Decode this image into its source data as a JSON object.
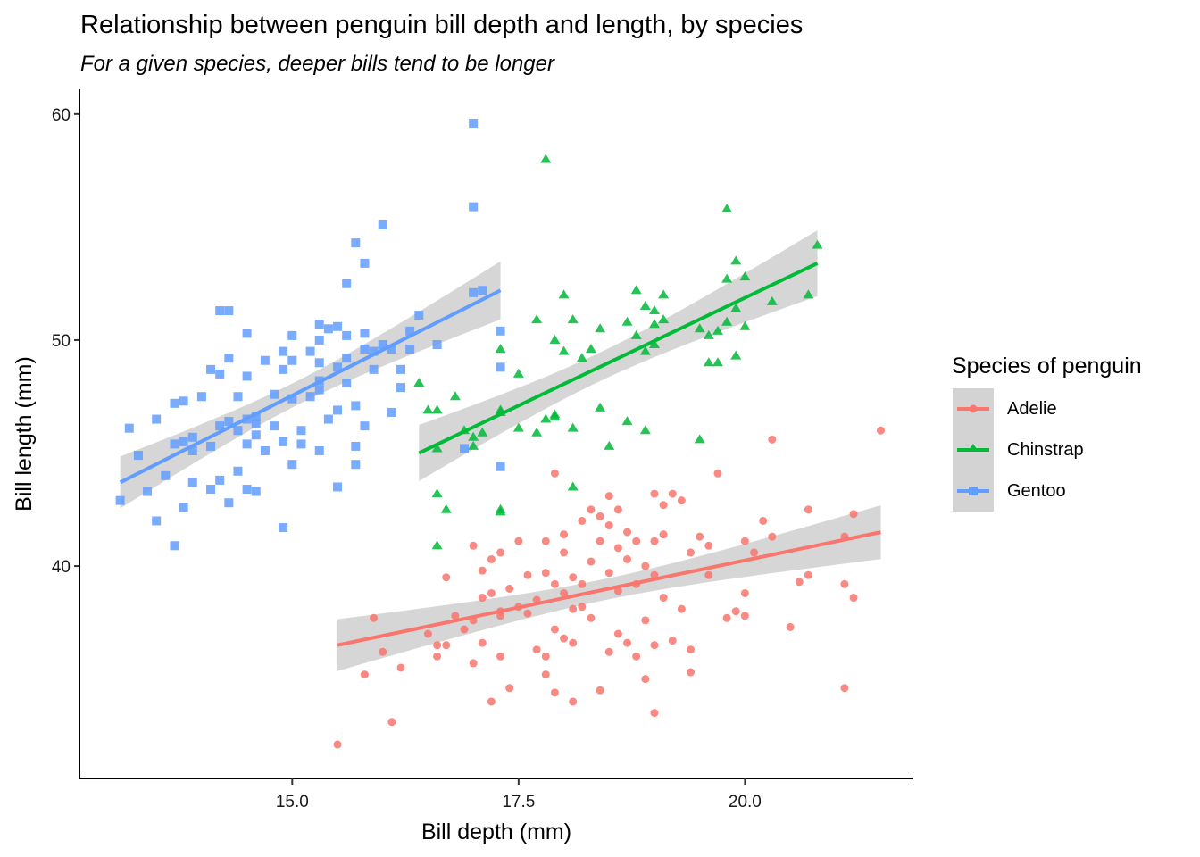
{
  "chart_data": {
    "type": "scatter",
    "title": "Relationship between penguin bill depth and length, by species",
    "subtitle": "For a given species, deeper bills tend to be longer",
    "xlabel": "Bill depth (mm)",
    "ylabel": "Bill length (mm)",
    "xlim": [
      12.65,
      21.85
    ],
    "ylim": [
      30.6,
      61.1
    ],
    "x_ticks": [
      15.0,
      17.5,
      20.0
    ],
    "x_tick_labels": [
      "15.0",
      "17.5",
      "20.0"
    ],
    "y_ticks": [
      40,
      50,
      60
    ],
    "y_tick_labels": [
      "40",
      "50",
      "60"
    ],
    "grid": false,
    "legend": {
      "title": "Species of penguin",
      "position": "right",
      "entries": [
        "Adelie",
        "Chinstrap",
        "Gentoo"
      ]
    },
    "series": [
      {
        "name": "Adelie",
        "color": "#f8766d",
        "marker": "circle",
        "trend": {
          "method": "lm",
          "x": [
            15.5,
            21.5
          ],
          "y": [
            36.5,
            41.5
          ],
          "se_band": true
        },
        "points": [
          [
            15.5,
            32.1
          ],
          [
            16.1,
            33.1
          ],
          [
            16.0,
            36.2
          ],
          [
            15.9,
            37.7
          ],
          [
            16.2,
            35.5
          ],
          [
            15.8,
            35.2
          ],
          [
            16.5,
            37.0
          ],
          [
            16.6,
            36.0
          ],
          [
            16.7,
            39.5
          ],
          [
            16.7,
            36.5
          ],
          [
            16.8,
            37.8
          ],
          [
            16.9,
            37.2
          ],
          [
            17.0,
            40.9
          ],
          [
            17.0,
            35.7
          ],
          [
            17.0,
            37.6
          ],
          [
            17.1,
            39.8
          ],
          [
            17.1,
            38.6
          ],
          [
            17.1,
            36.6
          ],
          [
            17.2,
            40.3
          ],
          [
            17.2,
            38.8
          ],
          [
            17.2,
            34.0
          ],
          [
            17.3,
            40.6
          ],
          [
            17.3,
            37.8
          ],
          [
            17.3,
            36.0
          ],
          [
            17.4,
            39.0
          ],
          [
            17.4,
            34.6
          ],
          [
            17.5,
            41.1
          ],
          [
            17.5,
            38.2
          ],
          [
            17.6,
            37.9
          ],
          [
            17.6,
            39.6
          ],
          [
            17.7,
            36.3
          ],
          [
            17.8,
            39.7
          ],
          [
            17.8,
            41.1
          ],
          [
            17.8,
            36.0
          ],
          [
            17.8,
            35.2
          ],
          [
            17.9,
            44.1
          ],
          [
            17.9,
            37.2
          ],
          [
            17.9,
            34.4
          ],
          [
            17.9,
            39.2
          ],
          [
            18.0,
            40.6
          ],
          [
            18.0,
            38.8
          ],
          [
            18.0,
            36.8
          ],
          [
            18.0,
            41.4
          ],
          [
            18.1,
            39.5
          ],
          [
            18.1,
            36.6
          ],
          [
            18.1,
            34.0
          ],
          [
            18.1,
            38.1
          ],
          [
            18.2,
            42.0
          ],
          [
            18.2,
            39.2
          ],
          [
            18.3,
            42.5
          ],
          [
            18.3,
            37.7
          ],
          [
            18.3,
            40.2
          ],
          [
            18.4,
            41.1
          ],
          [
            18.4,
            34.5
          ],
          [
            18.4,
            42.2
          ],
          [
            18.5,
            43.1
          ],
          [
            18.5,
            39.7
          ],
          [
            18.5,
            36.2
          ],
          [
            18.5,
            41.8
          ],
          [
            18.6,
            42.5
          ],
          [
            18.6,
            40.8
          ],
          [
            18.6,
            38.9
          ],
          [
            18.6,
            37.0
          ],
          [
            18.7,
            41.5
          ],
          [
            18.7,
            36.6
          ],
          [
            18.7,
            40.3
          ],
          [
            18.8,
            39.2
          ],
          [
            18.8,
            36.0
          ],
          [
            18.8,
            41.1
          ],
          [
            18.9,
            40.0
          ],
          [
            18.9,
            37.6
          ],
          [
            18.9,
            35.0
          ],
          [
            19.0,
            43.2
          ],
          [
            19.0,
            39.6
          ],
          [
            19.0,
            36.5
          ],
          [
            19.0,
            33.5
          ],
          [
            19.0,
            41.1
          ],
          [
            19.1,
            42.7
          ],
          [
            19.1,
            38.6
          ],
          [
            19.1,
            41.4
          ],
          [
            19.2,
            43.2
          ],
          [
            19.2,
            36.7
          ],
          [
            19.3,
            42.9
          ],
          [
            19.3,
            38.1
          ],
          [
            19.4,
            35.3
          ],
          [
            19.4,
            36.3
          ],
          [
            19.4,
            40.6
          ],
          [
            19.5,
            41.3
          ],
          [
            19.6,
            39.6
          ],
          [
            19.7,
            44.1
          ],
          [
            19.9,
            38.0
          ],
          [
            19.8,
            37.7
          ],
          [
            20.0,
            38.8
          ],
          [
            20.0,
            41.1
          ],
          [
            20.0,
            37.8
          ],
          [
            20.1,
            40.6
          ],
          [
            20.2,
            42.0
          ],
          [
            20.3,
            41.3
          ],
          [
            20.5,
            37.3
          ],
          [
            20.6,
            39.3
          ],
          [
            20.7,
            39.6
          ],
          [
            20.7,
            42.5
          ],
          [
            21.1,
            41.3
          ],
          [
            21.1,
            39.2
          ],
          [
            21.1,
            34.6
          ],
          [
            21.2,
            42.3
          ],
          [
            21.2,
            38.6
          ],
          [
            20.3,
            45.6
          ],
          [
            21.5,
            46.0
          ],
          [
            17.7,
            38.5
          ],
          [
            18.2,
            38.2
          ],
          [
            19.6,
            40.9
          ],
          [
            17.3,
            38.0
          ],
          [
            16.6,
            36.5
          ]
        ]
      },
      {
        "name": "Chinstrap",
        "color": "#00ba38",
        "marker": "triangle",
        "trend": {
          "method": "lm",
          "x": [
            16.4,
            20.8
          ],
          "y": [
            45.0,
            53.4
          ],
          "se_band": true
        },
        "points": [
          [
            16.4,
            48.1
          ],
          [
            16.5,
            46.9
          ],
          [
            16.6,
            46.9
          ],
          [
            16.6,
            45.2
          ],
          [
            16.6,
            43.2
          ],
          [
            16.6,
            40.9
          ],
          [
            16.7,
            42.5
          ],
          [
            16.8,
            47.5
          ],
          [
            16.9,
            46.0
          ],
          [
            17.0,
            45.7
          ],
          [
            17.1,
            45.9
          ],
          [
            17.3,
            49.6
          ],
          [
            17.3,
            46.9
          ],
          [
            17.3,
            42.4
          ],
          [
            17.3,
            42.5
          ],
          [
            17.3,
            46.8
          ],
          [
            17.5,
            48.5
          ],
          [
            17.5,
            46.1
          ],
          [
            17.7,
            50.9
          ],
          [
            17.7,
            45.9
          ],
          [
            17.8,
            58.0
          ],
          [
            17.8,
            46.5
          ],
          [
            17.9,
            50.0
          ],
          [
            17.9,
            46.6
          ],
          [
            17.9,
            46.7
          ],
          [
            18.0,
            52.0
          ],
          [
            18.0,
            49.5
          ],
          [
            18.1,
            50.9
          ],
          [
            18.1,
            46.1
          ],
          [
            18.1,
            43.5
          ],
          [
            18.2,
            49.2
          ],
          [
            18.3,
            49.6
          ],
          [
            18.4,
            50.5
          ],
          [
            18.4,
            47.0
          ],
          [
            18.5,
            45.3
          ],
          [
            18.7,
            50.8
          ],
          [
            18.7,
            46.4
          ],
          [
            18.8,
            52.2
          ],
          [
            18.8,
            50.2
          ],
          [
            18.9,
            51.5
          ],
          [
            18.9,
            49.5
          ],
          [
            18.9,
            46.0
          ],
          [
            19.0,
            51.3
          ],
          [
            19.0,
            50.7
          ],
          [
            19.0,
            49.8
          ],
          [
            19.1,
            52.0
          ],
          [
            19.1,
            50.9
          ],
          [
            19.5,
            50.5
          ],
          [
            19.5,
            45.6
          ],
          [
            19.6,
            49.0
          ],
          [
            19.7,
            50.4
          ],
          [
            19.7,
            49.0
          ],
          [
            19.8,
            55.8
          ],
          [
            19.8,
            50.8
          ],
          [
            19.8,
            52.7
          ],
          [
            19.9,
            53.5
          ],
          [
            19.9,
            51.4
          ],
          [
            19.9,
            49.3
          ],
          [
            20.0,
            52.8
          ],
          [
            20.0,
            50.6
          ],
          [
            20.3,
            51.7
          ],
          [
            20.7,
            52.0
          ],
          [
            20.8,
            54.2
          ],
          [
            17.0,
            45.3
          ],
          [
            19.6,
            50.2
          ]
        ]
      },
      {
        "name": "Gentoo",
        "color": "#619cff",
        "marker": "square",
        "trend": {
          "method": "lm",
          "x": [
            13.1,
            17.3
          ],
          "y": [
            43.7,
            52.2
          ],
          "se_band": true
        },
        "points": [
          [
            13.1,
            42.9
          ],
          [
            13.2,
            46.1
          ],
          [
            13.3,
            44.9
          ],
          [
            13.4,
            43.3
          ],
          [
            13.5,
            46.5
          ],
          [
            13.5,
            42.0
          ],
          [
            13.6,
            44.0
          ],
          [
            13.7,
            45.4
          ],
          [
            13.7,
            40.9
          ],
          [
            13.7,
            47.2
          ],
          [
            13.8,
            45.5
          ],
          [
            13.8,
            47.3
          ],
          [
            13.8,
            42.6
          ],
          [
            13.9,
            45.7
          ],
          [
            13.9,
            45.1
          ],
          [
            13.9,
            43.7
          ],
          [
            14.0,
            47.5
          ],
          [
            14.1,
            43.4
          ],
          [
            14.1,
            48.7
          ],
          [
            14.1,
            45.3
          ],
          [
            14.2,
            48.5
          ],
          [
            14.2,
            46.2
          ],
          [
            14.2,
            43.8
          ],
          [
            14.3,
            46.4
          ],
          [
            14.3,
            42.8
          ],
          [
            14.3,
            49.2
          ],
          [
            14.3,
            51.3
          ],
          [
            14.4,
            47.5
          ],
          [
            14.4,
            46.0
          ],
          [
            14.4,
            44.2
          ],
          [
            14.5,
            50.3
          ],
          [
            14.5,
            46.5
          ],
          [
            14.5,
            45.4
          ],
          [
            14.5,
            43.4
          ],
          [
            14.5,
            48.4
          ],
          [
            14.6,
            46.3
          ],
          [
            14.6,
            46.6
          ],
          [
            14.6,
            43.3
          ],
          [
            14.7,
            45.1
          ],
          [
            14.7,
            49.1
          ],
          [
            14.8,
            46.2
          ],
          [
            14.8,
            47.6
          ],
          [
            14.9,
            45.5
          ],
          [
            14.9,
            41.7
          ],
          [
            14.9,
            48.7
          ],
          [
            15.0,
            47.4
          ],
          [
            15.0,
            44.5
          ],
          [
            15.0,
            49.1
          ],
          [
            15.1,
            45.4
          ],
          [
            15.1,
            46.0
          ],
          [
            15.2,
            47.5
          ],
          [
            15.3,
            49.0
          ],
          [
            15.3,
            45.1
          ],
          [
            15.3,
            48.2
          ],
          [
            15.3,
            47.8
          ],
          [
            15.3,
            50.0
          ],
          [
            15.3,
            50.7
          ],
          [
            15.4,
            46.5
          ],
          [
            15.5,
            43.5
          ],
          [
            15.5,
            50.6
          ],
          [
            15.5,
            48.8
          ],
          [
            15.6,
            50.2
          ],
          [
            15.7,
            47.1
          ],
          [
            15.7,
            45.3
          ],
          [
            15.8,
            49.6
          ],
          [
            15.8,
            50.3
          ],
          [
            15.9,
            48.7
          ],
          [
            15.9,
            49.5
          ],
          [
            16.0,
            55.1
          ],
          [
            16.0,
            49.8
          ],
          [
            16.1,
            46.8
          ],
          [
            16.1,
            49.6
          ],
          [
            16.2,
            48.7
          ],
          [
            16.3,
            50.4
          ],
          [
            16.3,
            49.6
          ],
          [
            15.6,
            52.5
          ],
          [
            15.7,
            54.3
          ],
          [
            15.8,
            53.4
          ],
          [
            15.6,
            49.2
          ],
          [
            15.4,
            50.5
          ],
          [
            15.2,
            49.5
          ],
          [
            15.5,
            46.9
          ],
          [
            15.6,
            48.1
          ],
          [
            15.7,
            44.5
          ],
          [
            15.8,
            46.2
          ],
          [
            16.2,
            47.9
          ],
          [
            16.4,
            51.1
          ],
          [
            16.6,
            49.8
          ],
          [
            16.9,
            45.2
          ],
          [
            17.0,
            52.1
          ],
          [
            17.1,
            52.2
          ],
          [
            17.0,
            55.9
          ],
          [
            17.0,
            59.6
          ],
          [
            17.3,
            50.4
          ],
          [
            17.3,
            48.8
          ],
          [
            17.3,
            44.4
          ],
          [
            14.9,
            49.5
          ],
          [
            14.2,
            51.3
          ],
          [
            15.0,
            50.2
          ],
          [
            14.6,
            45.8
          ]
        ]
      }
    ]
  }
}
